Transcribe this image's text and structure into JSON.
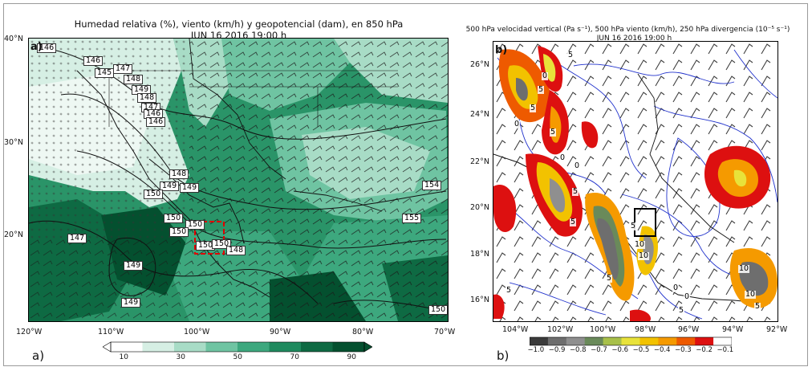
{
  "panel_a": {
    "title_line1": "Humedad relativa (%), viento (km/h) y geopotencial (dam), en 850 hPa",
    "title_line2": "JUN 16 2016 19:00 h",
    "inner_tag": "a)",
    "outer_tag": "a)",
    "lat_labels": [
      "40°N",
      "30°N",
      "20°N"
    ],
    "lon_labels": [
      "120°W",
      "110°W",
      "100°W",
      "90°W",
      "80°W",
      "70°W"
    ],
    "contour_labels": [
      "146",
      "146",
      "145",
      "147",
      "148",
      "149",
      "148",
      "147",
      "146",
      "146",
      "148",
      "149",
      "150",
      "149",
      "150",
      "150",
      "150",
      "150",
      "150",
      "148",
      "147",
      "149",
      "149",
      "154",
      "155",
      "150"
    ],
    "colorbar": {
      "ticks": [
        "10",
        "30",
        "50",
        "70",
        "90"
      ],
      "colors": [
        "#ffffff",
        "#d6efe4",
        "#a8dcc6",
        "#6fc4a2",
        "#3da87e",
        "#1f8a5e",
        "#0e6a43",
        "#04502f"
      ]
    }
  },
  "panel_b": {
    "title_line1": "500 hPa velocidad vertical (Pa s⁻¹), 500 hPa viento (km/h), 250 hPa divergencia (10⁻⁵ s⁻¹)",
    "title_line2": "JUN 16 2016 19:00 h",
    "inner_tag": "b)",
    "outer_tag": "b)",
    "lat_labels": [
      "26°N",
      "24°N",
      "22°N",
      "20°N",
      "18°N",
      "16°N"
    ],
    "lon_labels": [
      "104°W",
      "102°W",
      "100°W",
      "98°W",
      "96°W",
      "94°W",
      "92°W"
    ],
    "contour_labels": [
      "0",
      "5",
      "5",
      "0",
      "5",
      "0",
      "5",
      "5",
      "5",
      "10",
      "5",
      "10",
      "0",
      "5",
      "5",
      "0",
      "10",
      "10",
      "5",
      "0",
      "5"
    ],
    "colorbar": {
      "ticks": [
        "−1.0",
        "−0.9",
        "−0.8",
        "−0.7",
        "−0.6",
        "−0.5",
        "−0.4",
        "−0.3",
        "−0.2",
        "−0.1"
      ],
      "colors": [
        "#3b3b3b",
        "#6e6e6e",
        "#8f8f8f",
        "#6a8a5a",
        "#a8c04a",
        "#e8e23a",
        "#f2c200",
        "#f59a00",
        "#ee5a00",
        "#dd1010",
        "#ffffff"
      ]
    }
  }
}
